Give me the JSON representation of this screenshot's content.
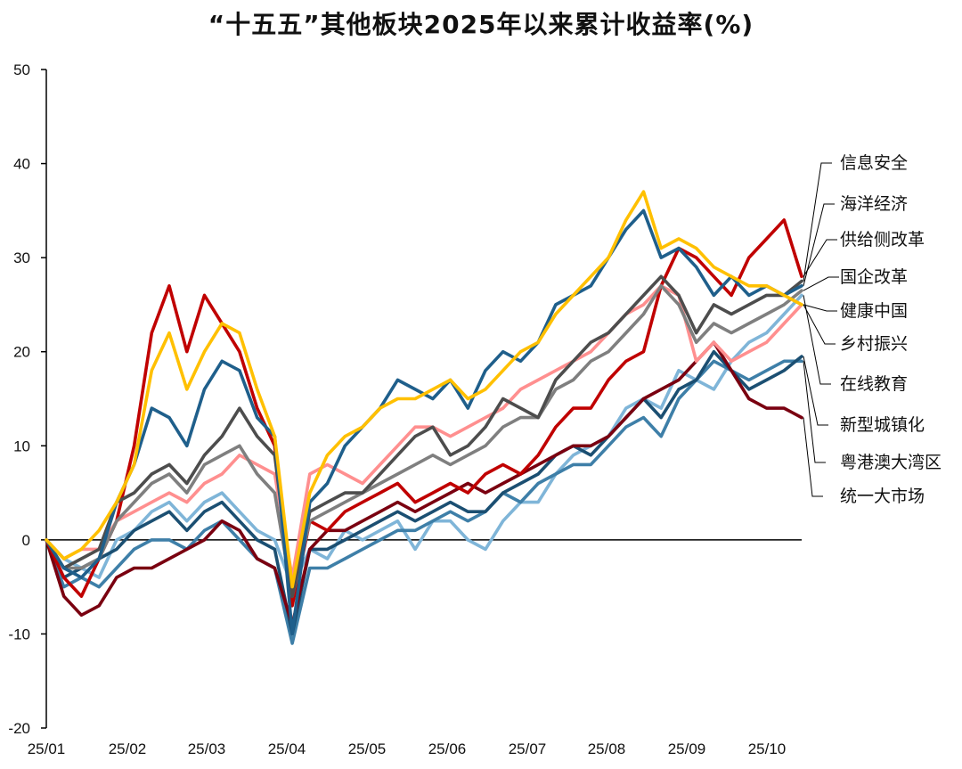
{
  "chart_data": {
    "type": "line",
    "title": "“十五五”其他板块2025年以来累计收益率(%)",
    "xlabel": "",
    "ylabel": "",
    "ylim": [
      -20,
      50
    ],
    "yticks": [
      -20,
      -10,
      0,
      10,
      20,
      30,
      40,
      50
    ],
    "xtick_labels": [
      "25/01",
      "25/02",
      "25/03",
      "25/04",
      "25/05",
      "25/06",
      "25/07",
      "25/08",
      "25/09",
      "25/10"
    ],
    "x": [
      "01-02",
      "01-10",
      "01-20",
      "02-03",
      "02-10",
      "02-17",
      "02-24",
      "03-03",
      "03-10",
      "03-17",
      "03-24",
      "03-31",
      "04-03",
      "04-07",
      "04-10",
      "04-15",
      "04-22",
      "04-29",
      "05-07",
      "05-14",
      "05-21",
      "05-28",
      "06-05",
      "06-12",
      "06-19",
      "06-26",
      "07-03",
      "07-10",
      "07-17",
      "07-24",
      "07-31",
      "08-07",
      "08-14",
      "08-21",
      "08-28",
      "09-04",
      "09-11",
      "09-18",
      "09-25",
      "09-30",
      "10-09",
      "10-16",
      "10-23",
      "10-28"
    ],
    "legend": "right",
    "grid": false,
    "series": [
      {
        "name": "信息安全",
        "color": "#4D4D4D",
        "values": [
          0,
          -3,
          -2,
          -1,
          4,
          5,
          7,
          8,
          6,
          9,
          11,
          14,
          11,
          9,
          -6,
          3,
          4,
          5,
          5,
          7,
          9,
          11,
          12,
          9,
          10,
          12,
          15,
          14,
          13,
          17,
          19,
          21,
          22,
          24,
          26,
          28,
          26,
          22,
          25,
          24,
          25,
          26,
          26,
          27.5
        ]
      },
      {
        "name": "海洋经济",
        "color": "#1F5F8B",
        "values": [
          0,
          -3,
          -4,
          -2,
          4,
          8,
          14,
          13,
          10,
          16,
          19,
          18,
          13,
          11,
          -10,
          4,
          6,
          10,
          12,
          14,
          17,
          16,
          15,
          17,
          14,
          18,
          20,
          19,
          21,
          25,
          26,
          27,
          30,
          33,
          35,
          30,
          31,
          29,
          26,
          28,
          26,
          27,
          26,
          27
        ]
      },
      {
        "name": "供给侧改革",
        "color": "#C00000",
        "values": [
          0,
          -4,
          -6,
          -2,
          2,
          10,
          22,
          27,
          20,
          26,
          23,
          20,
          14,
          10,
          -7,
          2,
          1,
          3,
          4,
          5,
          6,
          4,
          5,
          6,
          5,
          7,
          8,
          7,
          9,
          12,
          14,
          14,
          17,
          19,
          20,
          27,
          31,
          30,
          28,
          26,
          30,
          32,
          34,
          28
        ]
      },
      {
        "name": "国企改革",
        "color": "#7F7F7F",
        "values": [
          0,
          -3,
          -3,
          -2,
          2,
          4,
          6,
          7,
          5,
          8,
          9,
          10,
          7,
          5,
          -6,
          2,
          3,
          4,
          5,
          6,
          7,
          8,
          9,
          8,
          9,
          10,
          12,
          13,
          13,
          16,
          17,
          19,
          20,
          22,
          24,
          27,
          25,
          21,
          23,
          22,
          23,
          24,
          25,
          26.5
        ]
      },
      {
        "name": "健康中国",
        "color": "#FF8F8F",
        "values": [
          0,
          -2,
          -1,
          -1,
          2,
          3,
          4,
          5,
          4,
          6,
          7,
          9,
          8,
          7,
          -4,
          7,
          8,
          7,
          6,
          8,
          10,
          12,
          12,
          11,
          12,
          13,
          14,
          16,
          17,
          18,
          19,
          20,
          22,
          24,
          25,
          27,
          26,
          19,
          21,
          19,
          20,
          21,
          23,
          25
        ]
      },
      {
        "name": "乡村振兴",
        "color": "#FFC000",
        "values": [
          0,
          -2,
          -1,
          1,
          4,
          8,
          18,
          22,
          16,
          20,
          23,
          22,
          16,
          11,
          -5,
          5,
          9,
          11,
          12,
          14,
          15,
          15,
          16,
          17,
          15,
          16,
          18,
          20,
          21,
          24,
          26,
          28,
          30,
          34,
          37,
          31,
          32,
          31,
          29,
          28,
          27,
          27,
          26,
          25
        ]
      },
      {
        "name": "在线教育",
        "color": "#7FB5D8",
        "values": [
          0,
          -2,
          -3,
          -4,
          0,
          1,
          3,
          4,
          2,
          4,
          5,
          3,
          1,
          0,
          -5,
          -1,
          -2,
          1,
          0,
          1,
          2,
          -1,
          2,
          2,
          0,
          -1,
          2,
          4,
          4,
          7,
          9,
          10,
          11,
          14,
          15,
          14,
          18,
          17,
          16,
          19,
          21,
          22,
          24,
          26
        ]
      },
      {
        "name": "新型城镇化",
        "color": "#1B4F72",
        "values": [
          0,
          -4,
          -3,
          -2,
          -1,
          1,
          2,
          3,
          1,
          3,
          4,
          2,
          0,
          -1,
          -10,
          -1,
          -1,
          0,
          1,
          2,
          3,
          2,
          3,
          4,
          3,
          3,
          5,
          6,
          7,
          9,
          10,
          9,
          11,
          13,
          15,
          13,
          16,
          17,
          20,
          18,
          16,
          17,
          18,
          19.5
        ]
      },
      {
        "name": "粤港澳大湾区",
        "color": "#3E7FA8",
        "values": [
          0,
          -5,
          -4,
          -5,
          -3,
          -1,
          0,
          0,
          -1,
          1,
          2,
          0,
          -2,
          -3,
          -11,
          -3,
          -3,
          -2,
          -1,
          0,
          1,
          1,
          2,
          3,
          2,
          3,
          5,
          4,
          6,
          7,
          8,
          8,
          10,
          12,
          13,
          11,
          15,
          17,
          19,
          18,
          17,
          18,
          19,
          19
        ]
      },
      {
        "name": "统一大市场",
        "color": "#7A0010",
        "values": [
          0,
          -6,
          -8,
          -7,
          -4,
          -3,
          -3,
          -2,
          -1,
          0,
          2,
          1,
          -2,
          -3,
          -9,
          -1,
          1,
          1,
          2,
          3,
          4,
          3,
          4,
          5,
          6,
          5,
          6,
          7,
          8,
          9,
          10,
          10,
          11,
          13,
          15,
          16,
          17,
          19,
          21,
          18,
          15,
          14,
          14,
          13
        ]
      }
    ]
  }
}
